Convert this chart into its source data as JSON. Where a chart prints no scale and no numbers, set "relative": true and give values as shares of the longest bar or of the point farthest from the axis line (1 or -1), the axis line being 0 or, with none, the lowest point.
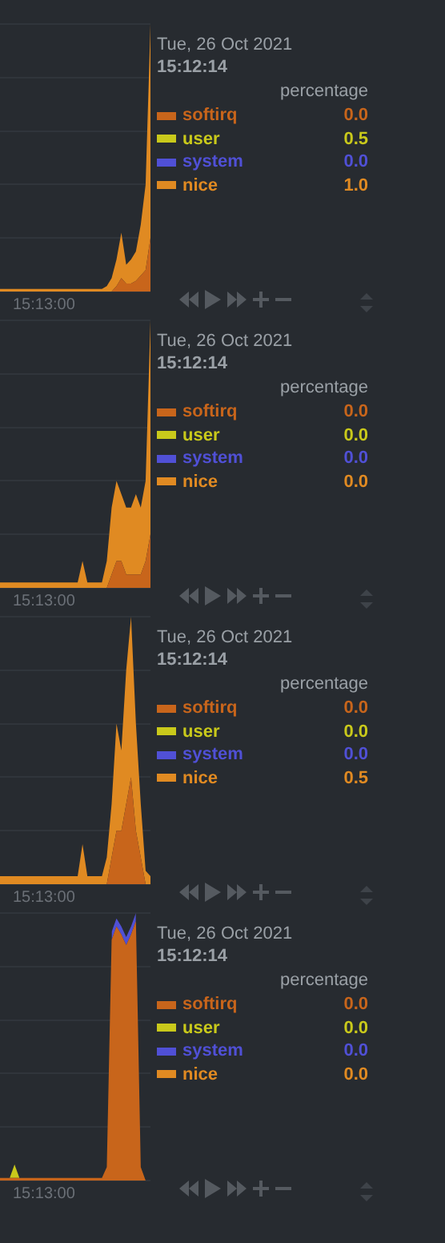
{
  "chart_data": [
    {
      "type": "area",
      "stacked": true,
      "relative": true,
      "grid": "y",
      "legend": "right",
      "legend_title": "percentage",
      "annotations": [
        "Tue, 26 Oct 2021",
        "15:12:14",
        "0.0",
        "0.5",
        "0.0",
        "1.0",
        "15:13:00"
      ],
      "categories": [
        null,
        null,
        null,
        null,
        null,
        null,
        null,
        null,
        null,
        null,
        null,
        null,
        null,
        null,
        null,
        null,
        null,
        null,
        null,
        null,
        null,
        null,
        null,
        null,
        null,
        null,
        null,
        null,
        null,
        null,
        null,
        null
      ],
      "series": [
        {
          "name": "softirq",
          "color": "#c8651b",
          "values": [
            0,
            0,
            0,
            0,
            0,
            0,
            0,
            0,
            0,
            0,
            0,
            0,
            0,
            0,
            0,
            0,
            0,
            0,
            0,
            0,
            0,
            0,
            0,
            0,
            0.02,
            0.05,
            0.03,
            0.03,
            0.04,
            0.06,
            0.08,
            0.2
          ]
        },
        {
          "name": "user",
          "color": "#c9c91b",
          "values": [
            null,
            null,
            null,
            null,
            null,
            null,
            null,
            null,
            null,
            null,
            null,
            null,
            null,
            null,
            null,
            null,
            null,
            null,
            null,
            null,
            null,
            null,
            null,
            null,
            null,
            null,
            null,
            null,
            null,
            null,
            null,
            null
          ]
        },
        {
          "name": "system",
          "color": "#5050d6",
          "values": [
            null,
            null,
            null,
            null,
            null,
            null,
            null,
            null,
            null,
            null,
            null,
            null,
            null,
            null,
            null,
            null,
            null,
            null,
            null,
            null,
            null,
            null,
            null,
            null,
            null,
            null,
            null,
            null,
            null,
            null,
            null,
            null
          ]
        },
        {
          "name": "nice",
          "color": "#e08a22",
          "values": [
            0.01,
            0.01,
            0.01,
            0.01,
            0.01,
            0.01,
            0.01,
            0.01,
            0.01,
            0.01,
            0.01,
            0.01,
            0.01,
            0.01,
            0.01,
            0.01,
            0.01,
            0.01,
            0.01,
            0.01,
            0.01,
            0.01,
            0.02,
            0.05,
            0.1,
            0.17,
            0.07,
            0.09,
            0.11,
            0.19,
            0.32,
            0.8
          ]
        }
      ]
    },
    {
      "type": "area",
      "stacked": true,
      "relative": true,
      "grid": "y",
      "legend": "right",
      "legend_title": "percentage",
      "annotations": [
        "Tue, 26 Oct 2021",
        "15:12:14",
        "0.0",
        "0.0",
        "0.0",
        "0.0",
        "15:13:00"
      ],
      "categories": [
        null,
        null,
        null,
        null,
        null,
        null,
        null,
        null,
        null,
        null,
        null,
        null,
        null,
        null,
        null,
        null,
        null,
        null,
        null,
        null,
        null,
        null,
        null,
        null,
        null,
        null,
        null,
        null,
        null,
        null,
        null,
        null
      ],
      "series": [
        {
          "name": "softirq",
          "color": "#c8651b",
          "values": [
            0,
            0,
            0,
            0,
            0,
            0,
            0,
            0,
            0,
            0,
            0,
            0,
            0,
            0,
            0,
            0,
            0,
            0,
            0,
            0,
            0,
            0,
            0,
            0.05,
            0.1,
            0.1,
            0.05,
            0.05,
            0.05,
            0.05,
            0.1,
            0.2
          ]
        },
        {
          "name": "user",
          "color": "#c9c91b",
          "values": [
            null,
            null,
            null,
            null,
            null,
            null,
            null,
            null,
            null,
            null,
            null,
            null,
            null,
            null,
            null,
            null,
            null,
            null,
            null,
            null,
            null,
            null,
            null,
            null,
            null,
            null,
            null,
            null,
            null,
            null,
            null,
            null
          ]
        },
        {
          "name": "system",
          "color": "#5050d6",
          "values": [
            null,
            null,
            null,
            null,
            null,
            null,
            null,
            null,
            null,
            null,
            null,
            null,
            null,
            null,
            null,
            null,
            null,
            null,
            null,
            null,
            null,
            null,
            null,
            null,
            null,
            null,
            null,
            null,
            null,
            null,
            null,
            null
          ]
        },
        {
          "name": "nice",
          "color": "#e08a22",
          "values": [
            0.02,
            0.02,
            0.02,
            0.02,
            0.02,
            0.02,
            0.02,
            0.02,
            0.02,
            0.02,
            0.02,
            0.02,
            0.02,
            0.02,
            0.02,
            0.02,
            0.02,
            0.1,
            0.02,
            0.02,
            0.02,
            0.02,
            0.1,
            0.25,
            0.3,
            0.25,
            0.25,
            0.25,
            0.3,
            0.25,
            0.3,
            0.8
          ]
        }
      ]
    },
    {
      "type": "area",
      "stacked": true,
      "relative": true,
      "grid": "y",
      "legend": "right",
      "legend_title": "percentage",
      "annotations": [
        "Tue, 26 Oct 2021",
        "15:12:14",
        "0.0",
        "0.0",
        "0.0",
        "0.5",
        "15:13:00"
      ],
      "categories": [
        null,
        null,
        null,
        null,
        null,
        null,
        null,
        null,
        null,
        null,
        null,
        null,
        null,
        null,
        null,
        null,
        null,
        null,
        null,
        null,
        null,
        null,
        null,
        null,
        null,
        null,
        null,
        null,
        null,
        null,
        null,
        null
      ],
      "series": [
        {
          "name": "softirq",
          "color": "#c8651b",
          "values": [
            0,
            0,
            0,
            0,
            0,
            0,
            0,
            0,
            0,
            0,
            0,
            0,
            0,
            0,
            0,
            0,
            0,
            0,
            0,
            0,
            0,
            0,
            0,
            0.1,
            0.2,
            0.2,
            0.3,
            0.4,
            0.2,
            0.1,
            0,
            0
          ]
        },
        {
          "name": "user",
          "color": "#c9c91b",
          "values": [
            null,
            null,
            null,
            null,
            null,
            null,
            null,
            null,
            null,
            null,
            null,
            null,
            null,
            null,
            null,
            null,
            null,
            null,
            null,
            null,
            null,
            null,
            null,
            null,
            null,
            null,
            null,
            null,
            null,
            null,
            null,
            null
          ]
        },
        {
          "name": "system",
          "color": "#5050d6",
          "values": [
            null,
            null,
            null,
            null,
            null,
            null,
            null,
            null,
            null,
            null,
            null,
            null,
            null,
            null,
            null,
            null,
            null,
            null,
            null,
            null,
            null,
            null,
            null,
            null,
            null,
            null,
            null,
            null,
            null,
            null,
            null,
            null
          ]
        },
        {
          "name": "nice",
          "color": "#e08a22",
          "values": [
            0.03,
            0.03,
            0.03,
            0.03,
            0.03,
            0.03,
            0.03,
            0.03,
            0.03,
            0.03,
            0.03,
            0.03,
            0.03,
            0.03,
            0.03,
            0.03,
            0.03,
            0.15,
            0.03,
            0.03,
            0.03,
            0.03,
            0.1,
            0.2,
            0.4,
            0.3,
            0.5,
            0.6,
            0.4,
            0.2,
            0.05,
            0.03
          ]
        }
      ]
    },
    {
      "type": "area",
      "stacked": true,
      "relative": true,
      "grid": "y",
      "legend": "right",
      "legend_title": "percentage",
      "annotations": [
        "Tue, 26 Oct 2021",
        "15:12:14",
        "0.0",
        "0.0",
        "0.0",
        "0.0",
        "15:13:00"
      ],
      "categories": [
        null,
        null,
        null,
        null,
        null,
        null,
        null,
        null,
        null,
        null,
        null,
        null,
        null,
        null,
        null,
        null,
        null,
        null,
        null,
        null,
        null,
        null,
        null,
        null,
        null,
        null,
        null,
        null,
        null,
        null,
        null,
        null
      ],
      "series": [
        {
          "name": "softirq",
          "color": "#c8651b",
          "values": [
            0.01,
            0.01,
            0.01,
            0.01,
            0.01,
            0.01,
            0.01,
            0.01,
            0.01,
            0.01,
            0.01,
            0.01,
            0.01,
            0.01,
            0.01,
            0.01,
            0.01,
            0.01,
            0.01,
            0.01,
            0.01,
            0.01,
            0.05,
            0.9,
            0.95,
            0.92,
            0.88,
            0.92,
            0.97,
            0.05,
            0,
            0
          ]
        },
        {
          "name": "user",
          "color": "#c9c91b",
          "values": [
            null,
            null,
            0,
            0.05,
            0,
            null,
            null,
            null,
            null,
            null,
            null,
            null,
            null,
            null,
            null,
            null,
            null,
            null,
            null,
            null,
            null,
            null,
            null,
            null,
            null,
            null,
            null,
            null,
            null,
            null,
            null,
            null
          ]
        },
        {
          "name": "system",
          "color": "#5050d6",
          "values": [
            null,
            null,
            null,
            null,
            null,
            null,
            null,
            null,
            null,
            null,
            null,
            null,
            null,
            null,
            null,
            null,
            null,
            null,
            null,
            null,
            null,
            null,
            null,
            0.03,
            0.03,
            0.03,
            0.03,
            0.03,
            0.03,
            null,
            null,
            null
          ]
        },
        {
          "name": "nice",
          "color": "#e08a22",
          "values": [
            null,
            null,
            null,
            null,
            null,
            null,
            null,
            null,
            null,
            null,
            null,
            null,
            null,
            null,
            null,
            null,
            null,
            null,
            null,
            null,
            null,
            null,
            null,
            null,
            null,
            null,
            null,
            null,
            null,
            null,
            null,
            null
          ]
        }
      ]
    }
  ]
}
